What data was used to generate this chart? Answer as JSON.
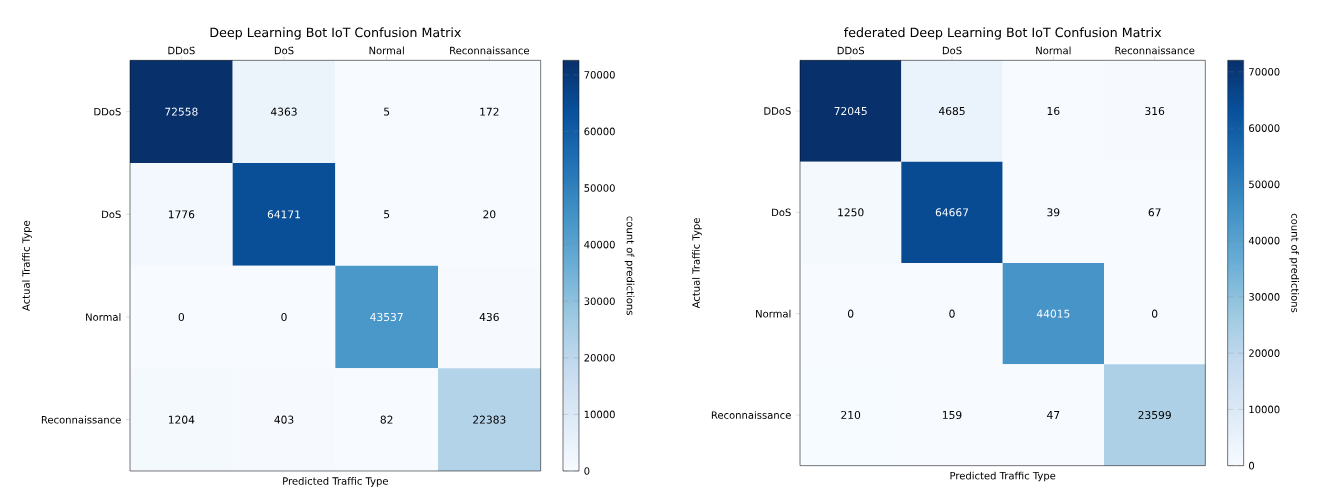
{
  "chart_data": [
    {
      "type": "heatmap",
      "title": "Deep Learning Bot IoT Confusion Matrix",
      "xlabel": "Predicted Traffic Type",
      "ylabel": "Actual Traffic Type",
      "clabel": "count of predictions",
      "categories": [
        "DDoS",
        "DoS",
        "Normal",
        "Reconnaissance"
      ],
      "y_categories": [
        "DDoS",
        "DoS",
        "Normal",
        "Reconnaissance"
      ],
      "cells": [
        [
          72558,
          4363,
          5,
          172
        ],
        [
          1776,
          64171,
          5,
          20
        ],
        [
          0,
          0,
          43537,
          436
        ],
        [
          1204,
          403,
          82,
          22383
        ]
      ],
      "clim": [
        0,
        72558
      ],
      "cticks": [
        0,
        10000,
        20000,
        30000,
        40000,
        50000,
        60000,
        70000
      ],
      "data_labels": true
    },
    {
      "type": "heatmap",
      "title": "federated Deep Learning Bot IoT Confusion Matrix",
      "xlabel": "Predicted Traffic Type",
      "ylabel": "Actual Traffic Type",
      "clabel": "count of predictions",
      "categories": [
        "DDoS",
        "DoS",
        "Normal",
        "Reconnaissance"
      ],
      "y_categories": [
        "DDoS",
        "DoS",
        "Normal",
        "Reconnaissance"
      ],
      "cells": [
        [
          72045,
          4685,
          16,
          316
        ],
        [
          1250,
          64667,
          39,
          67
        ],
        [
          0,
          0,
          44015,
          0
        ],
        [
          210,
          159,
          47,
          23599
        ]
      ],
      "clim": [
        0,
        72045
      ],
      "cticks": [
        0,
        10000,
        20000,
        30000,
        40000,
        50000,
        60000,
        70000
      ],
      "data_labels": true
    }
  ]
}
